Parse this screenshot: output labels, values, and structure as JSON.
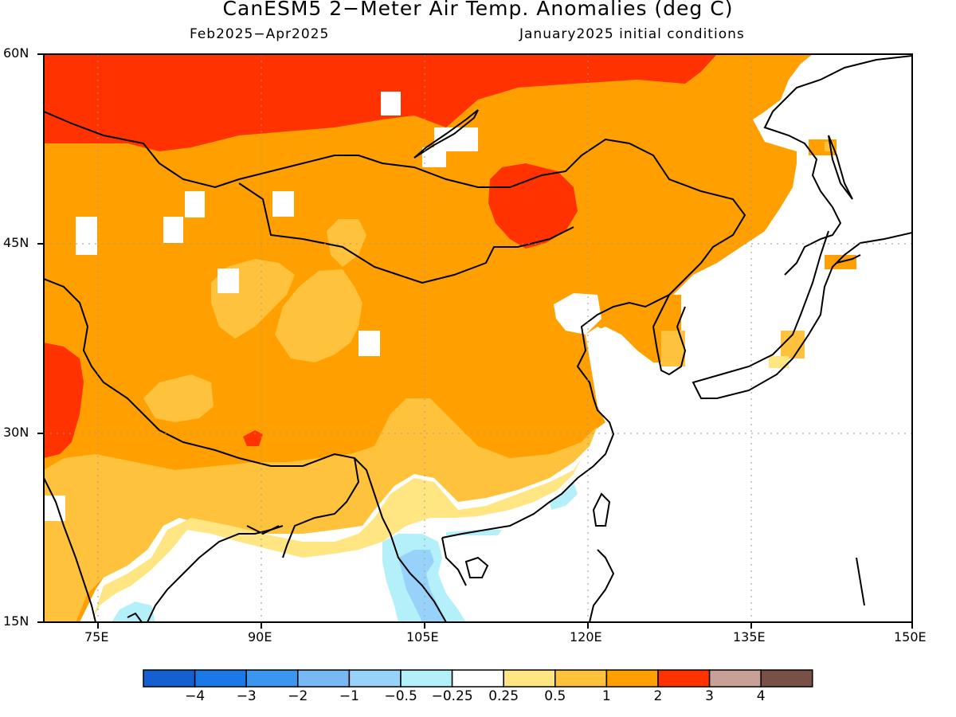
{
  "title": "CanESM5 2−Meter Air Temp. Anomalies (deg C)",
  "subtitle_left": "Feb2025−Apr2025",
  "subtitle_right": "January2025 initial conditions",
  "map": {
    "region": "East Asia",
    "lon_range": [
      70,
      150
    ],
    "lat_range": [
      15,
      60
    ],
    "lat_labels": [
      "60N",
      "45N",
      "30N",
      "15N"
    ],
    "lon_labels": [
      "75E",
      "90E",
      "105E",
      "120E",
      "135E",
      "150E"
    ],
    "grid": true
  },
  "colorbar": {
    "labels": [
      "−4",
      "−3",
      "−2",
      "−1",
      "−0.5",
      "−0.25",
      "0.25",
      "0.5",
      "1",
      "2",
      "3",
      "4"
    ],
    "colors": [
      "#1560d0",
      "#1a78e8",
      "#3c96f0",
      "#78b8f5",
      "#96d2fa",
      "#b4f0fa",
      "#ffffff",
      "#ffe682",
      "#ffc23c",
      "#ffa000",
      "#ff3200",
      "#c8a096",
      "#785046"
    ]
  },
  "regions": {
    "warm_north": "3",
    "central_china": "2",
    "tibet_high": "1",
    "south_asia": "1",
    "indochina": "-1"
  }
}
